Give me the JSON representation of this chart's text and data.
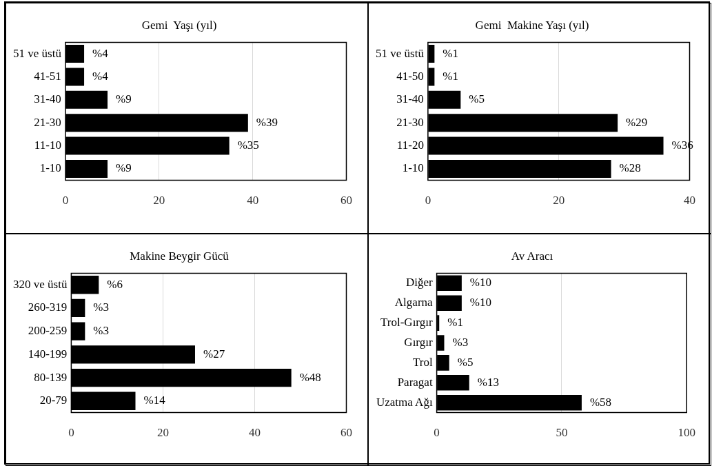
{
  "chart_data": [
    {
      "type": "bar",
      "orientation": "horizontal",
      "title": "Gemi  Yaşı (yıl)",
      "categories": [
        "51 ve üstü",
        "41-51",
        "31-40",
        "21-30",
        "11-10",
        "1-10"
      ],
      "values": [
        4,
        4,
        9,
        39,
        35,
        9
      ],
      "value_labels": [
        "%4",
        "%4",
        "%9",
        "%39",
        "%35",
        "%9"
      ],
      "color": "#000000",
      "xlim": [
        0,
        60
      ],
      "xticks": [
        0,
        20,
        40,
        60
      ],
      "grid": "x",
      "legend": false
    },
    {
      "type": "bar",
      "orientation": "horizontal",
      "title": "Gemi  Makine Yaşı (yıl)",
      "categories": [
        "51 ve üstü",
        "41-50",
        "31-40",
        "21-30",
        "11-20",
        "1-10"
      ],
      "values": [
        1,
        1,
        5,
        29,
        36,
        28
      ],
      "value_labels": [
        "%1",
        "%1",
        "%5",
        "%29",
        "%36",
        "%28"
      ],
      "color": "#000000",
      "xlim": [
        0,
        40
      ],
      "xticks": [
        0,
        20,
        40
      ],
      "grid": "x",
      "legend": false
    },
    {
      "type": "bar",
      "orientation": "horizontal",
      "title": "Makine Beygir Gücü",
      "categories": [
        "320 ve üstü",
        "260-319",
        "200-259",
        "140-199",
        "80-139",
        "20-79"
      ],
      "values": [
        6,
        3,
        3,
        27,
        48,
        14
      ],
      "value_labels": [
        "%6",
        "%3",
        "%3",
        "%27",
        "%48",
        "%14"
      ],
      "color": "#000000",
      "xlim": [
        0,
        60
      ],
      "xticks": [
        0,
        20,
        40,
        60
      ],
      "grid": "x",
      "legend": false
    },
    {
      "type": "bar",
      "orientation": "horizontal",
      "title": "Av Aracı",
      "categories": [
        "Diğer",
        "Algarna",
        "Trol-Gırgır",
        "Gırgır",
        "Trol",
        "Paragat",
        "Uzatma Ağı"
      ],
      "values": [
        10,
        10,
        1,
        3,
        5,
        13,
        58
      ],
      "value_labels": [
        "%10",
        "%10",
        "%1",
        "%3",
        "%5",
        "%13",
        "%58"
      ],
      "color": "#000000",
      "xlim": [
        0,
        100
      ],
      "xticks": [
        0,
        50,
        100
      ],
      "grid": "x",
      "legend": false
    }
  ]
}
